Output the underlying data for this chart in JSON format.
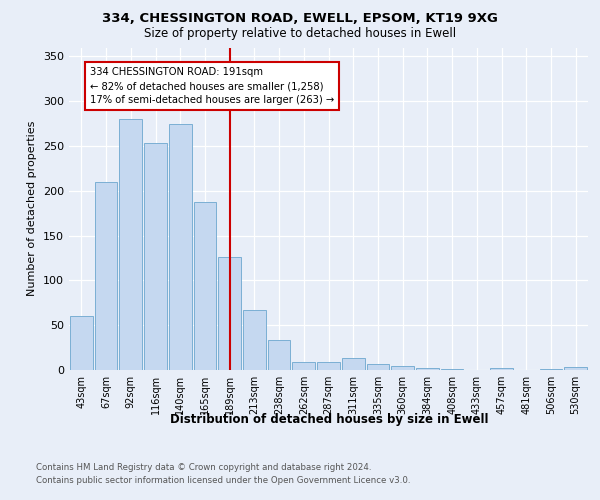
{
  "title1": "334, CHESSINGTON ROAD, EWELL, EPSOM, KT19 9XG",
  "title2": "Size of property relative to detached houses in Ewell",
  "xlabel": "Distribution of detached houses by size in Ewell",
  "ylabel": "Number of detached properties",
  "categories": [
    "43sqm",
    "67sqm",
    "92sqm",
    "116sqm",
    "140sqm",
    "165sqm",
    "189sqm",
    "213sqm",
    "238sqm",
    "262sqm",
    "287sqm",
    "311sqm",
    "335sqm",
    "360sqm",
    "384sqm",
    "408sqm",
    "433sqm",
    "457sqm",
    "481sqm",
    "506sqm",
    "530sqm"
  ],
  "values": [
    60,
    210,
    280,
    253,
    275,
    188,
    126,
    67,
    34,
    9,
    9,
    13,
    7,
    5,
    2,
    1,
    0,
    2,
    0,
    1,
    3
  ],
  "bar_color": "#c5d8f0",
  "bar_edge_color": "#7bafd4",
  "vline_x": 6.0,
  "vline_color": "#cc0000",
  "annotation_text": "334 CHESSINGTON ROAD: 191sqm\n← 82% of detached houses are smaller (1,258)\n17% of semi-detached houses are larger (263) →",
  "annotation_box_color": "#ffffff",
  "annotation_box_edge": "#cc0000",
  "ylim": [
    0,
    360
  ],
  "yticks": [
    0,
    50,
    100,
    150,
    200,
    250,
    300,
    350
  ],
  "footer_line1": "Contains HM Land Registry data © Crown copyright and database right 2024.",
  "footer_line2": "Contains public sector information licensed under the Open Government Licence v3.0.",
  "background_color": "#e8eef8",
  "plot_bg_color": "#e8eef8"
}
